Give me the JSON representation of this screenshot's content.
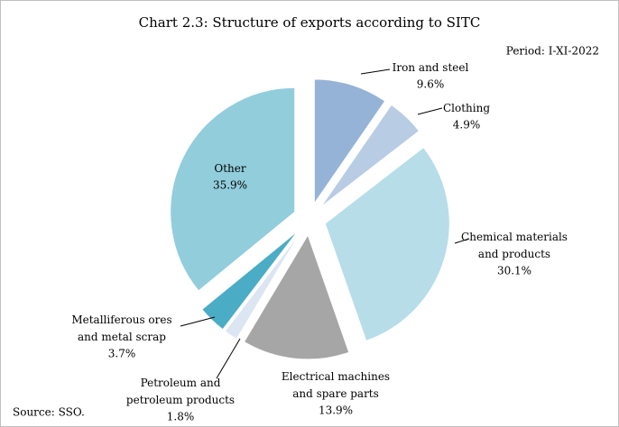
{
  "chart_data": {
    "type": "pie",
    "title": "Chart 2.3: Structure of exports according to SITC",
    "subtitle": "Period: I-XI-2022",
    "source": "Source: SSO.",
    "categories": [
      "Iron and steel",
      "Clothing",
      "Chemical materials\nand products",
      "Electrical machines\nand spare parts",
      "Petroleum and\npetroleum products",
      "Metalliferous ores\nand metal scrap",
      "Other"
    ],
    "values": [
      9.6,
      4.9,
      30.1,
      13.9,
      1.8,
      3.7,
      35.9
    ],
    "value_labels": [
      "9.6%",
      "4.9%",
      "30.1%",
      "13.9%",
      "1.8%",
      "3.7%",
      "35.9%"
    ],
    "colors": [
      "#95b3d7",
      "#b8cce4",
      "#b7dde8",
      "#a6a6a6",
      "#dce6f2",
      "#4bacc6",
      "#92cddc"
    ]
  }
}
